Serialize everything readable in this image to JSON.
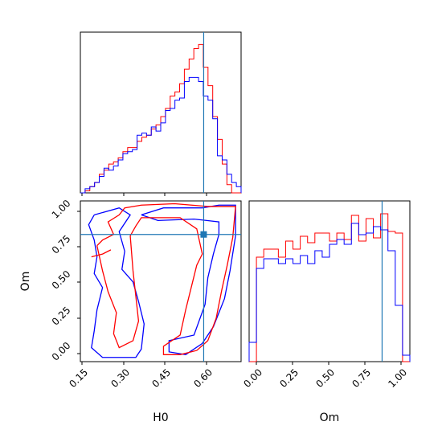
{
  "chart_data": [
    {
      "type": "histogram",
      "panel": "H0 marginal",
      "xlim": [
        0.14,
        0.72
      ],
      "truth_line": 0.585,
      "series": [
        {
          "color": "#ff0000",
          "bin_edges": [
            0.14,
            0.1571,
            0.1741,
            0.1912,
            0.2082,
            0.2253,
            0.2424,
            0.2594,
            0.2765,
            0.2935,
            0.3106,
            0.3276,
            0.3447,
            0.3618,
            0.3788,
            0.3959,
            0.4129,
            0.43,
            0.4471,
            0.4641,
            0.4812,
            0.4982,
            0.5153,
            0.5324,
            0.5494,
            0.5665,
            0.5835,
            0.6006,
            0.6176,
            0.6347,
            0.6518,
            0.6688,
            0.6859,
            0.7029,
            0.72
          ],
          "values": [
            0.0,
            0.01,
            0.03,
            0.05,
            0.09,
            0.11,
            0.14,
            0.15,
            0.17,
            0.2,
            0.22,
            0.22,
            0.25,
            0.27,
            0.28,
            0.31,
            0.33,
            0.37,
            0.41,
            0.47,
            0.49,
            0.53,
            0.6,
            0.65,
            0.7,
            0.72,
            0.61,
            0.52,
            0.37,
            0.26,
            0.14,
            0.04,
            0.0,
            0.0
          ]
        },
        {
          "color": "#0000ff",
          "bin_edges": [
            0.14,
            0.1571,
            0.1741,
            0.1912,
            0.2082,
            0.2253,
            0.2424,
            0.2594,
            0.2765,
            0.2935,
            0.3106,
            0.3276,
            0.3447,
            0.3618,
            0.3788,
            0.3959,
            0.4129,
            0.43,
            0.4471,
            0.4641,
            0.4812,
            0.4982,
            0.5153,
            0.5324,
            0.5494,
            0.5665,
            0.5835,
            0.6006,
            0.6176,
            0.6347,
            0.6518,
            0.6688,
            0.6859,
            0.7029,
            0.72
          ],
          "values": [
            0.0,
            0.02,
            0.03,
            0.05,
            0.08,
            0.12,
            0.11,
            0.13,
            0.16,
            0.19,
            0.2,
            0.21,
            0.28,
            0.29,
            0.28,
            0.32,
            0.3,
            0.34,
            0.4,
            0.41,
            0.45,
            0.46,
            0.54,
            0.56,
            0.56,
            0.54,
            0.47,
            0.45,
            0.36,
            0.18,
            0.16,
            0.09,
            0.05,
            0.03
          ]
        }
      ],
      "ylim": [
        0,
        0.78
      ]
    },
    {
      "type": "histogram",
      "panel": "Om marginal",
      "xlim": [
        -0.05,
        1.05
      ],
      "truth_line": 0.86,
      "series": [
        {
          "color": "#ff0000",
          "bin_edges": [
            -0.05,
            0.0,
            0.05,
            0.1,
            0.15,
            0.2,
            0.25,
            0.3,
            0.35,
            0.4,
            0.45,
            0.5,
            0.55,
            0.6,
            0.65,
            0.7,
            0.75,
            0.8,
            0.85,
            0.9,
            0.95,
            1.0,
            1.05
          ],
          "values": [
            0.0,
            0.65,
            0.7,
            0.7,
            0.65,
            0.75,
            0.7,
            0.78,
            0.74,
            0.8,
            0.8,
            0.75,
            0.8,
            0.76,
            0.91,
            0.75,
            0.89,
            0.77,
            0.92,
            0.81,
            0.8,
            0.0
          ]
        },
        {
          "color": "#0000ff",
          "bin_edges": [
            -0.05,
            0.0,
            0.05,
            0.1,
            0.15,
            0.2,
            0.25,
            0.3,
            0.35,
            0.4,
            0.45,
            0.5,
            0.55,
            0.6,
            0.65,
            0.7,
            0.75,
            0.8,
            0.85,
            0.9,
            0.95,
            1.0,
            1.05
          ],
          "values": [
            0.12,
            0.58,
            0.64,
            0.64,
            0.61,
            0.64,
            0.61,
            0.66,
            0.61,
            0.69,
            0.65,
            0.73,
            0.76,
            0.73,
            0.86,
            0.79,
            0.8,
            0.84,
            0.82,
            0.69,
            0.35,
            0.04
          ]
        }
      ],
      "ylim": [
        0,
        1.0
      ]
    },
    {
      "type": "contour",
      "panel": "H0 vs Om joint",
      "xlim": [
        0.14,
        0.72
      ],
      "ylim": [
        -0.05,
        1.1
      ],
      "truth_point": [
        0.585,
        0.86
      ],
      "series": [
        {
          "color": "#0000ff",
          "contours": [
            [
              [
                0.19,
                1.0
              ],
              [
                0.17,
                0.93
              ],
              [
                0.19,
                0.82
              ],
              [
                0.2,
                0.7
              ],
              [
                0.19,
                0.58
              ],
              [
                0.22,
                0.48
              ],
              [
                0.2,
                0.32
              ],
              [
                0.19,
                0.17
              ],
              [
                0.18,
                0.05
              ],
              [
                0.22,
                -0.02
              ],
              [
                0.34,
                -0.02
              ],
              [
                0.36,
                0.04
              ],
              [
                0.37,
                0.22
              ],
              [
                0.35,
                0.38
              ],
              [
                0.33,
                0.52
              ],
              [
                0.29,
                0.61
              ],
              [
                0.3,
                0.74
              ],
              [
                0.28,
                0.88
              ],
              [
                0.32,
                1.0
              ],
              [
                0.28,
                1.05
              ],
              [
                0.19,
                1.0
              ]
            ],
            [
              [
                0.36,
                1.0
              ],
              [
                0.44,
                1.05
              ],
              [
                0.58,
                1.05
              ],
              [
                0.64,
                1.07
              ],
              [
                0.7,
                1.07
              ],
              [
                0.7,
                0.85
              ],
              [
                0.68,
                0.6
              ],
              [
                0.66,
                0.4
              ],
              [
                0.62,
                0.2
              ],
              [
                0.58,
                0.08
              ],
              [
                0.52,
                0.0
              ],
              [
                0.46,
                0.02
              ],
              [
                0.46,
                0.1
              ],
              [
                0.55,
                0.14
              ],
              [
                0.59,
                0.36
              ],
              [
                0.6,
                0.55
              ],
              [
                0.62,
                0.72
              ],
              [
                0.64,
                0.86
              ],
              [
                0.64,
                0.95
              ],
              [
                0.55,
                0.97
              ],
              [
                0.42,
                0.96
              ],
              [
                0.36,
                1.0
              ]
            ]
          ]
        },
        {
          "color": "#ff0000",
          "contours": [
            [
              [
                0.2,
                0.78
              ],
              [
                0.22,
                0.82
              ],
              [
                0.26,
                0.86
              ],
              [
                0.24,
                0.95
              ],
              [
                0.28,
                1.0
              ],
              [
                0.3,
                1.05
              ],
              [
                0.36,
                1.07
              ],
              [
                0.48,
                1.08
              ],
              [
                0.6,
                1.06
              ],
              [
                0.7,
                1.06
              ],
              [
                0.69,
                0.84
              ],
              [
                0.67,
                0.64
              ],
              [
                0.65,
                0.46
              ],
              [
                0.63,
                0.26
              ],
              [
                0.6,
                0.1
              ],
              [
                0.56,
                0.03
              ],
              [
                0.5,
                0.0
              ],
              [
                0.44,
                0.0
              ],
              [
                0.44,
                0.06
              ],
              [
                0.5,
                0.14
              ],
              [
                0.52,
                0.32
              ],
              [
                0.54,
                0.48
              ],
              [
                0.56,
                0.64
              ],
              [
                0.58,
                0.72
              ],
              [
                0.56,
                0.9
              ],
              [
                0.5,
                0.98
              ],
              [
                0.44,
                0.98
              ],
              [
                0.4,
                0.98
              ],
              [
                0.36,
                0.98
              ],
              [
                0.34,
                0.92
              ],
              [
                0.32,
                0.85
              ],
              [
                0.33,
                0.6
              ],
              [
                0.34,
                0.42
              ],
              [
                0.35,
                0.24
              ],
              [
                0.33,
                0.1
              ],
              [
                0.28,
                0.05
              ],
              [
                0.26,
                0.15
              ],
              [
                0.27,
                0.3
              ],
              [
                0.24,
                0.45
              ],
              [
                0.22,
                0.6
              ],
              [
                0.2,
                0.78
              ]
            ],
            [
              [
                0.18,
                0.7
              ],
              [
                0.22,
                0.72
              ],
              [
                0.25,
                0.75
              ]
            ]
          ]
        }
      ]
    }
  ],
  "axes": {
    "joint": {
      "xlabel": "H0",
      "ylabel": "Om",
      "xticks": [
        "0.15",
        "0.30",
        "0.45",
        "0.60"
      ],
      "yticks": [
        "0.00",
        "0.25",
        "0.50",
        "0.75",
        "1.00"
      ]
    },
    "om_marginal": {
      "xlabel": "Om",
      "xticks": [
        "0.00",
        "0.25",
        "0.50",
        "0.75",
        "1.00"
      ]
    }
  },
  "colors": {
    "series_red": "#ff0000",
    "series_blue": "#0000ff",
    "truth": "#1f77b4"
  }
}
